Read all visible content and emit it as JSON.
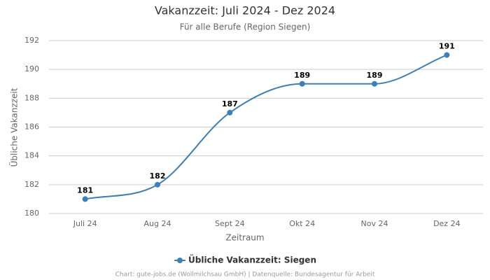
{
  "chart_data": {
    "type": "line",
    "title": "Vakanzzeit: Juli 2024 - Dez 2024",
    "subtitle": "Für alle Berufe (Region Siegen)",
    "x_label": "Zeitraum",
    "y_label": "Übliche Vakanzzeit",
    "categories": [
      "Juli 24",
      "Aug 24",
      "Sept 24",
      "Okt 24",
      "Nov 24",
      "Dez 24"
    ],
    "series": [
      {
        "name": "Übliche Vakanzzeit: Siegen",
        "color": "#3d7fb7",
        "values": [
          181,
          182,
          187,
          189,
          189,
          191
        ]
      }
    ],
    "ylim": [
      180,
      192
    ],
    "yticks": [
      180,
      182,
      184,
      186,
      188,
      190,
      192
    ],
    "grid": true,
    "smooth": true,
    "legend": "bottom",
    "credit": "Chart: gute-jobs.de (Wollmilchsau GmbH) | Datenquelle: Bundesagentur für Arbeit"
  }
}
